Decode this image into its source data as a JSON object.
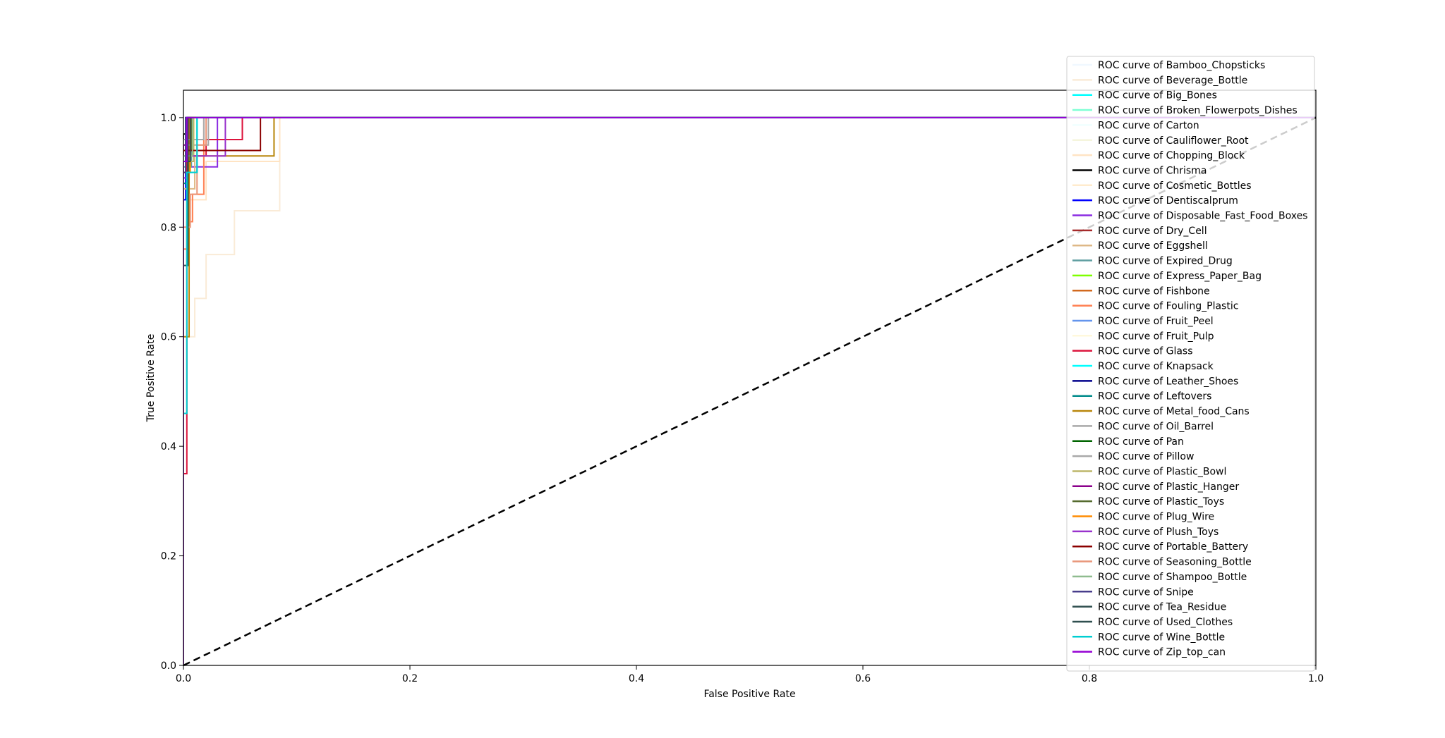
{
  "chart_data": {
    "type": "line",
    "title": "",
    "xlabel": "False Positive Rate",
    "ylabel": "True Positive Rate",
    "xlim": [
      0.0,
      1.0
    ],
    "ylim": [
      0.0,
      1.05
    ],
    "xticks": [
      "0.0",
      "0.2",
      "0.4",
      "0.6",
      "0.8",
      "1.0"
    ],
    "yticks": [
      "0.0",
      "0.2",
      "0.4",
      "0.6",
      "0.8",
      "1.0"
    ],
    "grid": false,
    "legend_position": "top-right",
    "diagonal": {
      "x": [
        0,
        1
      ],
      "y": [
        0,
        1
      ],
      "style": "dashed",
      "color": "#000000"
    },
    "series": [
      {
        "name": "ROC curve of Bamboo_Chopsticks",
        "color": "#f0f8ff",
        "x": [
          0,
          0,
          0.003,
          0.003,
          1
        ],
        "y": [
          0,
          0.9,
          0.9,
          1,
          1
        ]
      },
      {
        "name": "ROC curve of Beverage_Bottle",
        "color": "#faebd7",
        "x": [
          0,
          0,
          0.01,
          0.01,
          0.02,
          0.02,
          0.045,
          0.045,
          0.085,
          0.085,
          1
        ],
        "y": [
          0,
          0.6,
          0.6,
          0.67,
          0.67,
          0.75,
          0.75,
          0.83,
          0.83,
          1,
          1
        ]
      },
      {
        "name": "ROC curve of Big_Bones",
        "color": "#00ffff",
        "x": [
          0,
          0,
          0.004,
          0.004,
          1
        ],
        "y": [
          0,
          0.88,
          0.88,
          1,
          1
        ]
      },
      {
        "name": "ROC curve of Broken_Flowerpots_Dishes",
        "color": "#7fffd4",
        "x": [
          0,
          0,
          0.006,
          0.006,
          1
        ],
        "y": [
          0,
          0.92,
          0.92,
          1,
          1
        ]
      },
      {
        "name": "ROC curve of Carton",
        "color": "#f0ffff",
        "x": [
          0,
          0,
          0.005,
          0.005,
          1
        ],
        "y": [
          0,
          0.95,
          0.95,
          1,
          1
        ]
      },
      {
        "name": "ROC curve of Cauliflower_Root",
        "color": "#f5f5dc",
        "x": [
          0,
          0,
          0.008,
          0.008,
          1
        ],
        "y": [
          0,
          0.93,
          0.93,
          1,
          1
        ]
      },
      {
        "name": "ROC curve of Chopping_Block",
        "color": "#ffe4c4",
        "x": [
          0,
          0,
          0.02,
          0.02,
          0.045,
          0.045,
          0.085,
          0.085,
          1
        ],
        "y": [
          0,
          0.85,
          0.85,
          0.92,
          0.92,
          0.92,
          0.92,
          1,
          1
        ]
      },
      {
        "name": "ROC curve of Chrisma",
        "color": "#000000",
        "x": [
          0,
          0,
          0.003,
          0.003,
          1
        ],
        "y": [
          0,
          0.97,
          0.97,
          1,
          1
        ]
      },
      {
        "name": "ROC curve of Cosmetic_Bottles",
        "color": "#ffebcd",
        "x": [
          0,
          0,
          0.012,
          0.012,
          1
        ],
        "y": [
          0,
          0.9,
          0.9,
          1,
          1
        ]
      },
      {
        "name": "ROC curve of Dentiscalprum",
        "color": "#0000ff",
        "x": [
          0,
          0,
          0.002,
          0.002,
          1
        ],
        "y": [
          0,
          0.85,
          0.85,
          1,
          1
        ]
      },
      {
        "name": "ROC curve of Disposable_Fast_Food_Boxes",
        "color": "#8a2be2",
        "x": [
          0,
          0,
          0.005,
          0.005,
          0.03,
          0.03,
          1
        ],
        "y": [
          0,
          0.89,
          0.89,
          0.91,
          0.91,
          1,
          1
        ]
      },
      {
        "name": "ROC curve of Dry_Cell",
        "color": "#a52a2a",
        "x": [
          0,
          0,
          0.004,
          0.004,
          1
        ],
        "y": [
          0,
          0.94,
          0.94,
          1,
          1
        ]
      },
      {
        "name": "ROC curve of Eggshell",
        "color": "#deb887",
        "x": [
          0,
          0,
          0.01,
          0.01,
          1
        ],
        "y": [
          0,
          0.87,
          0.87,
          1,
          1
        ]
      },
      {
        "name": "ROC curve of Expired_Drug",
        "color": "#5f9ea0",
        "x": [
          0,
          0,
          0.007,
          0.007,
          1
        ],
        "y": [
          0,
          0.91,
          0.91,
          1,
          1
        ]
      },
      {
        "name": "ROC curve of Express_Paper_Bag",
        "color": "#7fff00",
        "x": [
          0,
          0,
          0.006,
          0.006,
          1
        ],
        "y": [
          0,
          0.93,
          0.93,
          1,
          1
        ]
      },
      {
        "name": "ROC curve of Fishbone",
        "color": "#d2691e",
        "x": [
          0,
          0,
          0.005,
          0.005,
          1
        ],
        "y": [
          0,
          0.92,
          0.92,
          1,
          1
        ]
      },
      {
        "name": "ROC curve of Fouling_Plastic",
        "color": "#ff7f50",
        "x": [
          0,
          0,
          0.003,
          0.003,
          0.008,
          0.008,
          0.012,
          0.012,
          0.018,
          0.018,
          1
        ],
        "y": [
          0,
          0.76,
          0.76,
          0.81,
          0.81,
          0.86,
          0.86,
          0.86,
          0.86,
          1,
          1
        ]
      },
      {
        "name": "ROC curve of Fruit_Peel",
        "color": "#6495ed",
        "x": [
          0,
          0,
          0.003,
          0.003,
          1
        ],
        "y": [
          0,
          0.9,
          0.9,
          1,
          1
        ]
      },
      {
        "name": "ROC curve of Fruit_Pulp",
        "color": "#fff8dc",
        "x": [
          0,
          0,
          0.01,
          0.01,
          1
        ],
        "y": [
          0,
          0.93,
          0.93,
          1,
          1
        ]
      },
      {
        "name": "ROC curve of Glass",
        "color": "#dc143c",
        "x": [
          0,
          0,
          0.003,
          0.003,
          0.02,
          0.02,
          0.052,
          0.052,
          1
        ],
        "y": [
          0,
          0.35,
          0.35,
          0.93,
          0.93,
          0.96,
          0.96,
          1,
          1
        ]
      },
      {
        "name": "ROC curve of Knapsack",
        "color": "#00ffff",
        "x": [
          0,
          0,
          0.012,
          0.012,
          1
        ],
        "y": [
          0,
          0.9,
          0.9,
          1,
          1
        ]
      },
      {
        "name": "ROC curve of Leather_Shoes",
        "color": "#00008b",
        "x": [
          0,
          0,
          0.002,
          0.002,
          1
        ],
        "y": [
          0,
          0.92,
          0.92,
          1,
          1
        ]
      },
      {
        "name": "ROC curve of Leftovers",
        "color": "#008b8b",
        "x": [
          0,
          0,
          0.004,
          0.004,
          1
        ],
        "y": [
          0,
          0.88,
          0.88,
          1,
          1
        ]
      },
      {
        "name": "ROC curve of Metal_food_Cans",
        "color": "#b8860b",
        "x": [
          0,
          0,
          0.005,
          0.005,
          0.08,
          0.08,
          1
        ],
        "y": [
          0,
          0.6,
          0.6,
          0.93,
          0.93,
          1,
          1
        ]
      },
      {
        "name": "ROC curve of Oil_Barrel",
        "color": "#a9a9a9",
        "x": [
          0,
          0,
          0.022,
          0.022,
          1
        ],
        "y": [
          0,
          0.95,
          0.95,
          1,
          1
        ]
      },
      {
        "name": "ROC curve of Pan",
        "color": "#006400",
        "x": [
          0,
          0,
          0.004,
          0.004,
          1
        ],
        "y": [
          0,
          0.9,
          0.9,
          1,
          1
        ]
      },
      {
        "name": "ROC curve of Pillow",
        "color": "#a9a9a9",
        "x": [
          0,
          0,
          0.018,
          0.018,
          1
        ],
        "y": [
          0,
          0.96,
          0.96,
          1,
          1
        ]
      },
      {
        "name": "ROC curve of Plastic_Bowl",
        "color": "#bdb76b",
        "x": [
          0,
          0,
          0.009,
          0.009,
          1
        ],
        "y": [
          0,
          0.92,
          0.92,
          1,
          1
        ]
      },
      {
        "name": "ROC curve of Plastic_Hanger",
        "color": "#8b008b",
        "x": [
          0,
          0,
          0.003,
          0.003,
          1
        ],
        "y": [
          0,
          0.95,
          0.95,
          1,
          1
        ]
      },
      {
        "name": "ROC curve of Plastic_Toys",
        "color": "#556b2f",
        "x": [
          0,
          0,
          0.007,
          0.007,
          1
        ],
        "y": [
          0,
          0.94,
          0.94,
          1,
          1
        ]
      },
      {
        "name": "ROC curve of Plug_Wire",
        "color": "#ff8c00",
        "x": [
          0,
          0,
          0.006,
          0.006,
          1
        ],
        "y": [
          0,
          0.9,
          0.9,
          1,
          1
        ]
      },
      {
        "name": "ROC curve of Plush_Toys",
        "color": "#9932cc",
        "x": [
          0,
          0,
          0.01,
          0.01,
          0.037,
          0.037,
          1
        ],
        "y": [
          0,
          0.93,
          0.93,
          0.93,
          0.93,
          1,
          1
        ]
      },
      {
        "name": "ROC curve of Portable_Battery",
        "color": "#8b0000",
        "x": [
          0,
          0,
          0.004,
          0.004,
          0.068,
          0.068,
          1
        ],
        "y": [
          0,
          0.94,
          0.94,
          0.94,
          0.94,
          1,
          1
        ]
      },
      {
        "name": "ROC curve of Seasoning_Bottle",
        "color": "#e9967a",
        "x": [
          0,
          0,
          0.006,
          0.006,
          0.012,
          0.012,
          0.02,
          0.02,
          1
        ],
        "y": [
          0,
          0.8,
          0.8,
          0.86,
          0.86,
          0.95,
          0.95,
          1,
          1
        ]
      },
      {
        "name": "ROC curve of Shampoo_Bottle",
        "color": "#8fbc8f",
        "x": [
          0,
          0,
          0.008,
          0.008,
          1
        ],
        "y": [
          0,
          0.93,
          0.93,
          1,
          1
        ]
      },
      {
        "name": "ROC curve of Snipe",
        "color": "#483d8b",
        "x": [
          0,
          0,
          0.002,
          0.002,
          1
        ],
        "y": [
          0,
          0.9,
          0.9,
          1,
          1
        ]
      },
      {
        "name": "ROC curve of Tea_Residue",
        "color": "#2f4f4f",
        "x": [
          0,
          0,
          0.004,
          0.004,
          1
        ],
        "y": [
          0,
          0.73,
          0.73,
          1,
          1
        ]
      },
      {
        "name": "ROC curve of Used_Clothes",
        "color": "#2f4f4f",
        "x": [
          0,
          0,
          0.006,
          0.006,
          1
        ],
        "y": [
          0,
          0.92,
          0.92,
          1,
          1
        ]
      },
      {
        "name": "ROC curve of Wine_Bottle",
        "color": "#00ced1",
        "x": [
          0,
          0,
          0.003,
          0.003,
          0.012,
          0.012,
          1
        ],
        "y": [
          0,
          0.46,
          0.46,
          0.9,
          0.9,
          1,
          1
        ]
      },
      {
        "name": "ROC curve of Zip_top_can",
        "color": "#9400d3",
        "x": [
          0,
          0,
          0.003,
          0.003,
          1
        ],
        "y": [
          0,
          0.92,
          0.92,
          1,
          1
        ]
      }
    ]
  }
}
